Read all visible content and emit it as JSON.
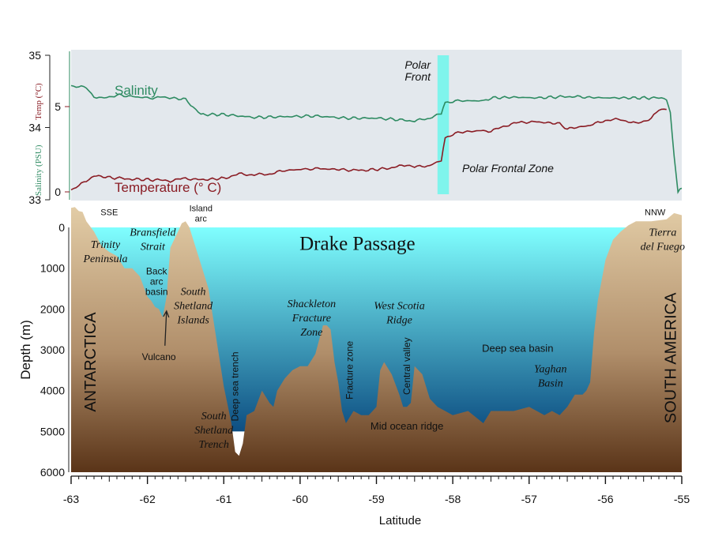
{
  "chart_data": [
    {
      "type": "line",
      "panel": "upper",
      "xlim": [
        -63,
        -55
      ],
      "y_axes": [
        {
          "label": "Temp (°C)",
          "ticks": [
            "0",
            "5"
          ],
          "color": "#8a1c24"
        },
        {
          "label": "Salinity (PSU)",
          "ticks": [
            "33",
            "34",
            "35"
          ],
          "color": "#2e8b62"
        }
      ],
      "series": [
        {
          "name": "Salinity",
          "color": "#2e8b62",
          "x": [
            -63.0,
            -62.8,
            -62.7,
            -62.6,
            -62.4,
            -62.0,
            -61.8,
            -61.5,
            -61.3,
            -61.0,
            -60.6,
            -60.2,
            -59.8,
            -59.4,
            -59.0,
            -58.6,
            -58.5,
            -58.3,
            -58.15,
            -58.1,
            -57.9,
            -57.6,
            -57.5,
            -57.2,
            -56.9,
            -56.5,
            -56.3,
            -56.0,
            -55.7,
            -55.4,
            -55.2,
            -55.15,
            -55.1,
            -55.05,
            -55.0
          ],
          "values": [
            34.58,
            34.55,
            34.43,
            34.4,
            34.45,
            34.41,
            34.42,
            34.39,
            34.18,
            34.18,
            34.14,
            34.15,
            34.16,
            34.13,
            34.13,
            34.1,
            34.09,
            34.13,
            34.2,
            34.35,
            34.37,
            34.37,
            34.41,
            34.42,
            34.41,
            34.43,
            34.42,
            34.41,
            34.41,
            34.41,
            34.4,
            34.2,
            33.6,
            33.12,
            33.15
          ]
        },
        {
          "name": "Temperature",
          "color": "#8a1c24",
          "x": [
            -63.0,
            -62.9,
            -62.7,
            -62.4,
            -62.2,
            -61.9,
            -61.7,
            -61.5,
            -61.3,
            -61.0,
            -60.8,
            -60.6,
            -60.4,
            -60.2,
            -59.9,
            -59.7,
            -59.4,
            -59.2,
            -58.8,
            -58.6,
            -58.5,
            -58.3,
            -58.15,
            -58.1,
            -57.9,
            -57.6,
            -57.5,
            -57.3,
            -57.1,
            -56.9,
            -56.6,
            -56.5,
            -56.2,
            -56.0,
            -55.8,
            -55.6,
            -55.4,
            -55.3,
            -55.2
          ],
          "values": [
            0.12,
            0.35,
            0.95,
            0.8,
            0.75,
            0.7,
            0.65,
            0.8,
            0.7,
            0.8,
            1.05,
            1.0,
            1.05,
            1.25,
            1.35,
            1.35,
            1.3,
            1.25,
            1.4,
            1.6,
            1.45,
            1.55,
            1.85,
            3.2,
            3.5,
            3.6,
            3.55,
            3.9,
            4.1,
            4.1,
            4.0,
            3.7,
            3.9,
            4.2,
            4.25,
            4.0,
            4.3,
            4.8,
            4.9
          ]
        }
      ],
      "labels": {
        "salinity": "Salinity",
        "temperature": "Temperature (° C)",
        "polar_front": [
          "Polar",
          "Front"
        ],
        "polar_frontal_zone": "Polar Frontal Zone"
      },
      "polar_front_band": [
        -58.2,
        -58.05
      ]
    },
    {
      "type": "area",
      "panel": "lower",
      "title": "Drake Passage",
      "xlabel": "Latitude",
      "ylabel": "Depth  (m)",
      "xlim": [
        -63,
        -55
      ],
      "ylim": [
        6000,
        0
      ],
      "x_ticks": [
        "-63",
        "-62",
        "-61",
        "-60",
        "-59",
        "-58",
        "-57",
        "-56",
        "-55"
      ],
      "y_ticks": [
        "0",
        "1000",
        "2000",
        "3000",
        "4000",
        "5000",
        "6000"
      ],
      "bathymetry": {
        "x": [
          -63.0,
          -62.95,
          -62.9,
          -62.85,
          -62.8,
          -62.7,
          -62.6,
          -62.5,
          -62.4,
          -62.3,
          -62.2,
          -62.1,
          -62.0,
          -61.95,
          -61.9,
          -61.85,
          -61.8,
          -61.75,
          -61.7,
          -61.6,
          -61.55,
          -61.5,
          -61.45,
          -61.4,
          -61.3,
          -61.2,
          -61.1,
          -61.0,
          -60.9,
          -60.85,
          -60.8,
          -60.75,
          -60.7,
          -60.6,
          -60.5,
          -60.4,
          -60.35,
          -60.3,
          -60.2,
          -60.1,
          -60.0,
          -59.9,
          -59.8,
          -59.7,
          -59.65,
          -59.6,
          -59.55,
          -59.5,
          -59.45,
          -59.4,
          -59.3,
          -59.2,
          -59.1,
          -59.0,
          -58.95,
          -58.9,
          -58.8,
          -58.7,
          -58.65,
          -58.6,
          -58.55,
          -58.5,
          -58.4,
          -58.3,
          -58.2,
          -58.1,
          -58.0,
          -57.8,
          -57.6,
          -57.5,
          -57.2,
          -57.0,
          -56.8,
          -56.7,
          -56.6,
          -56.5,
          -56.4,
          -56.3,
          -56.25,
          -56.2,
          -56.15,
          -56.1,
          -56.0,
          -55.9,
          -55.8,
          -55.7,
          -55.6,
          -55.4,
          -55.2,
          -55.1,
          -55.0
        ],
        "depth": [
          -480,
          -500,
          -400,
          -380,
          -150,
          100,
          450,
          600,
          700,
          1000,
          1000,
          1200,
          1700,
          1800,
          1950,
          2000,
          2200,
          1700,
          500,
          100,
          -100,
          -150,
          0,
          300,
          900,
          1500,
          2700,
          3900,
          4800,
          5500,
          5600,
          5300,
          4600,
          4500,
          4000,
          4300,
          4400,
          4000,
          3700,
          3500,
          3400,
          3400,
          3100,
          2400,
          2400,
          2500,
          3300,
          3800,
          4500,
          4800,
          4500,
          4600,
          4600,
          4400,
          3500,
          3300,
          3600,
          4100,
          4400,
          4400,
          4300,
          3400,
          3600,
          4200,
          4400,
          4500,
          4600,
          4500,
          4800,
          4500,
          4500,
          4400,
          4600,
          4500,
          4600,
          4400,
          4100,
          4100,
          4000,
          3800,
          2600,
          1800,
          800,
          300,
          100,
          -50,
          -150,
          -150,
          -200,
          -350,
          -300
        ]
      },
      "water_surface_depth": 0,
      "labels": [
        {
          "text": "SSE",
          "x": -62.5,
          "depth": -300
        },
        {
          "text": "Island",
          "x": -61.3,
          "depth": -400
        },
        {
          "text": "arc",
          "x": -61.3,
          "depth": -150
        },
        {
          "text": "NNW",
          "x": -55.35,
          "depth": -300
        },
        {
          "text": "Trinity",
          "x": -62.55,
          "depth": 500
        },
        {
          "text": "Peninsula",
          "x": -62.55,
          "depth": 850
        },
        {
          "text": "Bransfield",
          "x": -61.93,
          "depth": 200
        },
        {
          "text": "Strait",
          "x": -61.93,
          "depth": 550
        },
        {
          "text": "Back",
          "x": -61.88,
          "depth": 1150
        },
        {
          "text": "arc",
          "x": -61.88,
          "depth": 1400
        },
        {
          "text": "basin",
          "x": -61.88,
          "depth": 1650
        },
        {
          "text": "South",
          "x": -61.4,
          "depth": 1650
        },
        {
          "text": "Shetland",
          "x": -61.4,
          "depth": 2000
        },
        {
          "text": "Islands",
          "x": -61.4,
          "depth": 2350
        },
        {
          "text": "Vulcano",
          "x": -61.85,
          "depth": 3250
        },
        {
          "text": "ANTARCTICA",
          "x": -62.75,
          "depth": 3300
        },
        {
          "text": "Shackleton",
          "x": -59.85,
          "depth": 1950
        },
        {
          "text": "Fracture",
          "x": -59.85,
          "depth": 2300
        },
        {
          "text": "Zone",
          "x": -59.85,
          "depth": 2650
        },
        {
          "text": "West Scotia",
          "x": -58.7,
          "depth": 2000
        },
        {
          "text": "Ridge",
          "x": -58.7,
          "depth": 2350
        },
        {
          "text": "Deep sea basin",
          "x": -57.15,
          "depth": 3050
        },
        {
          "text": "Yaghan",
          "x": -56.72,
          "depth": 3550
        },
        {
          "text": "Basin",
          "x": -56.72,
          "depth": 3900
        },
        {
          "text": "Deep sea trench",
          "x": -60.85,
          "depth": 3900
        },
        {
          "text": "Fracture zone",
          "x": -59.35,
          "depth": 3500
        },
        {
          "text": "Central valley",
          "x": -58.6,
          "depth": 3400
        },
        {
          "text": "South",
          "x": -61.13,
          "depth": 4700
        },
        {
          "text": "Shetland",
          "x": -61.13,
          "depth": 5050
        },
        {
          "text": "Trench",
          "x": -61.13,
          "depth": 5400
        },
        {
          "text": "Mid ocean ridge",
          "x": -58.6,
          "depth": 4950
        },
        {
          "text": "Tierra",
          "x": -55.25,
          "depth": 200
        },
        {
          "text": "del  Fuego",
          "x": -55.25,
          "depth": 550
        },
        {
          "text": "SOUTH  AMERICA",
          "x": -55.15,
          "depth": 3200
        }
      ],
      "colors": {
        "water_top": "#80ffff",
        "water_bottom": "#0d4e82",
        "land_top": "#e2cca6",
        "land_bottom": "#5a3418",
        "panel_bg": "#e3e8ed"
      }
    }
  ]
}
